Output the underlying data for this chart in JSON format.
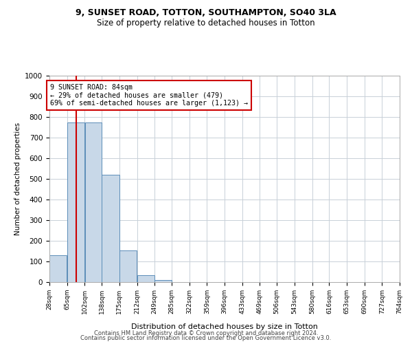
{
  "title_line1": "9, SUNSET ROAD, TOTTON, SOUTHAMPTON, SO40 3LA",
  "title_line2": "Size of property relative to detached houses in Totton",
  "xlabel": "Distribution of detached houses by size in Totton",
  "ylabel": "Number of detached properties",
  "bar_edges": [
    28,
    65,
    102,
    138,
    175,
    212,
    249,
    285,
    322,
    359,
    396,
    433,
    469,
    506,
    543,
    580,
    616,
    653,
    690,
    727,
    764
  ],
  "bar_heights": [
    130,
    775,
    775,
    520,
    155,
    35,
    10,
    0,
    0,
    0,
    0,
    0,
    0,
    0,
    0,
    0,
    0,
    0,
    0,
    0
  ],
  "bar_color": "#c8d8e8",
  "bar_edge_color": "#5b8db8",
  "property_line_x": 84,
  "property_line_color": "#cc0000",
  "annotation_text": "9 SUNSET ROAD: 84sqm\n← 29% of detached houses are smaller (479)\n69% of semi-detached houses are larger (1,123) →",
  "annotation_box_color": "#ffffff",
  "annotation_box_edge_color": "#cc0000",
  "ylim": [
    0,
    1000
  ],
  "yticks": [
    0,
    100,
    200,
    300,
    400,
    500,
    600,
    700,
    800,
    900,
    1000
  ],
  "footer_line1": "Contains HM Land Registry data © Crown copyright and database right 2024.",
  "footer_line2": "Contains public sector information licensed under the Open Government Licence v3.0.",
  "background_color": "#ffffff",
  "grid_color": "#c8d0d8"
}
